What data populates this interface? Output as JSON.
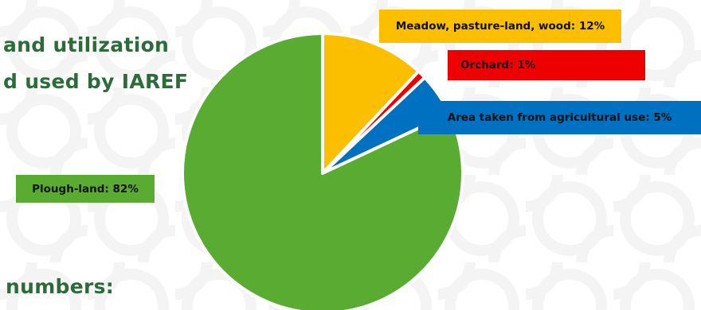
{
  "header": {
    "title_line1": "and utilization",
    "title_line2": "d used by IAREF",
    "subtitle": "numbers:"
  },
  "colors": {
    "title": "#2e6b3a",
    "plough": "#5aab32",
    "meadow": "#fcbf00",
    "orchard": "#ee0000",
    "area": "#0070c0"
  },
  "chart_data": {
    "type": "pie",
    "title": "",
    "slices": [
      {
        "name": "Meadow, pasture-land, wood",
        "value": 12,
        "color": "#fcbf00",
        "label": "Meadow, pasture-land, wood: 12%"
      },
      {
        "name": "Orchard",
        "value": 1,
        "color": "#ee0000",
        "label": "Orchard: 1%"
      },
      {
        "name": "Area taken from agricultural use",
        "value": 5,
        "color": "#0070c0",
        "label": "Area taken from agricultural use: 5%"
      },
      {
        "name": "Plough-land",
        "value": 82,
        "color": "#5aab32",
        "label": "Plough-land: 82%"
      }
    ]
  }
}
